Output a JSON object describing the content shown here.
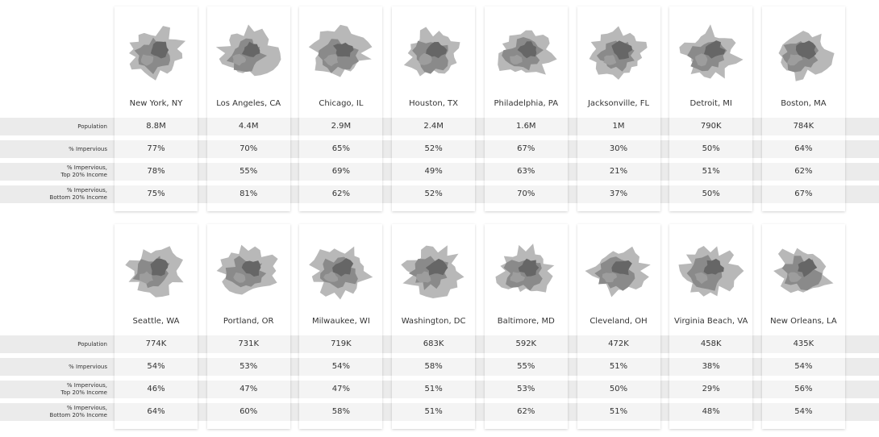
{
  "panels": [
    {
      "cities": [
        "New York, NY",
        "Los Angeles, CA",
        "Chicago, IL",
        "Houston, TX",
        "Philadelphia, PA",
        "Jacksonville, FL",
        "Detroit, MI",
        "Boston, MA"
      ],
      "rows": [
        {
          "label": [
            "Population"
          ],
          "values": [
            "8.8M",
            "4.4M",
            "2.9M",
            "2.4M",
            "1.6M",
            "1M",
            "790K",
            "784K"
          ]
        },
        {
          "label": [
            "% Impervious"
          ],
          "values": [
            "77%",
            "70%",
            "65%",
            "52%",
            "67%",
            "30%",
            "50%",
            "64%"
          ]
        },
        {
          "label": [
            "% Impervious,",
            "Top 20% Income"
          ],
          "values": [
            "78%",
            "55%",
            "69%",
            "49%",
            "63%",
            "21%",
            "51%",
            "62%"
          ]
        },
        {
          "label": [
            "% Impervious,",
            "Bottom 20% Income"
          ],
          "values": [
            "75%",
            "81%",
            "62%",
            "52%",
            "70%",
            "37%",
            "50%",
            "67%"
          ]
        }
      ]
    },
    {
      "cities": [
        "Seattle, WA",
        "Portland, OR",
        "Milwaukee, WI",
        "Washington, DC",
        "Baltimore, MD",
        "Cleveland, OH",
        "Virginia Beach, VA",
        "New Orleans, LA"
      ],
      "rows": [
        {
          "label": [
            "Population"
          ],
          "values": [
            "774K",
            "731K",
            "719K",
            "683K",
            "592K",
            "472K",
            "458K",
            "435K"
          ]
        },
        {
          "label": [
            "% Impervious"
          ],
          "values": [
            "54%",
            "53%",
            "54%",
            "58%",
            "55%",
            "51%",
            "38%",
            "54%"
          ]
        },
        {
          "label": [
            "% Impervious,",
            "Top 20% Income"
          ],
          "values": [
            "46%",
            "47%",
            "47%",
            "51%",
            "53%",
            "50%",
            "29%",
            "56%"
          ]
        },
        {
          "label": [
            "% Impervious,",
            "Bottom 20% Income"
          ],
          "values": [
            "64%",
            "60%",
            "58%",
            "51%",
            "62%",
            "51%",
            "48%",
            "54%"
          ]
        }
      ]
    }
  ]
}
